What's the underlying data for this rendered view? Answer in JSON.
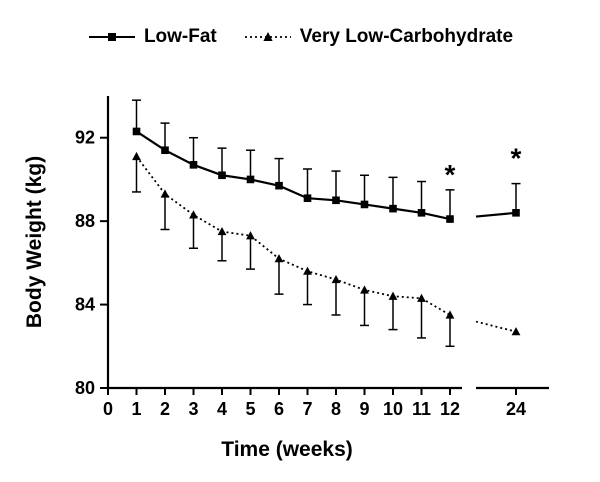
{
  "chart_data": {
    "type": "line",
    "title": "",
    "xlabel": "Time (weeks)",
    "ylabel": "Body Weight (kg)",
    "x": [
      1,
      2,
      3,
      4,
      5,
      6,
      7,
      8,
      9,
      10,
      11,
      12,
      24
    ],
    "xticks": [
      0,
      1,
      2,
      3,
      4,
      5,
      6,
      7,
      8,
      9,
      10,
      11,
      12,
      24
    ],
    "yticks": [
      80,
      84,
      88,
      92
    ],
    "ylim": [
      80,
      94
    ],
    "axis_break_between": [
      12,
      24
    ],
    "grid": false,
    "legend_position": "top",
    "color": "#000000",
    "background": "#ffffff",
    "series": [
      {
        "name": "Low-Fat",
        "marker": "square",
        "line": "solid",
        "values": [
          92.3,
          91.4,
          90.7,
          90.2,
          90.0,
          89.7,
          89.1,
          89.0,
          88.8,
          88.6,
          88.4,
          88.1,
          88.4
        ],
        "err_up": [
          1.5,
          1.3,
          1.3,
          1.3,
          1.4,
          1.3,
          1.4,
          1.4,
          1.4,
          1.5,
          1.5,
          1.4,
          1.4
        ]
      },
      {
        "name": "Very Low-Carbohydrate",
        "marker": "triangle",
        "line": "dotted",
        "values": [
          91.1,
          89.3,
          88.3,
          87.5,
          87.3,
          86.2,
          85.6,
          85.2,
          84.7,
          84.4,
          84.3,
          83.5,
          82.7
        ],
        "err_down": [
          1.7,
          1.7,
          1.6,
          1.4,
          1.6,
          1.7,
          1.6,
          1.7,
          1.7,
          1.6,
          1.9,
          1.5,
          0
        ]
      }
    ],
    "annotations": [
      {
        "x": 12,
        "y": 90.4,
        "text": "*"
      },
      {
        "x": 24,
        "y": 91.2,
        "text": "*"
      }
    ]
  }
}
